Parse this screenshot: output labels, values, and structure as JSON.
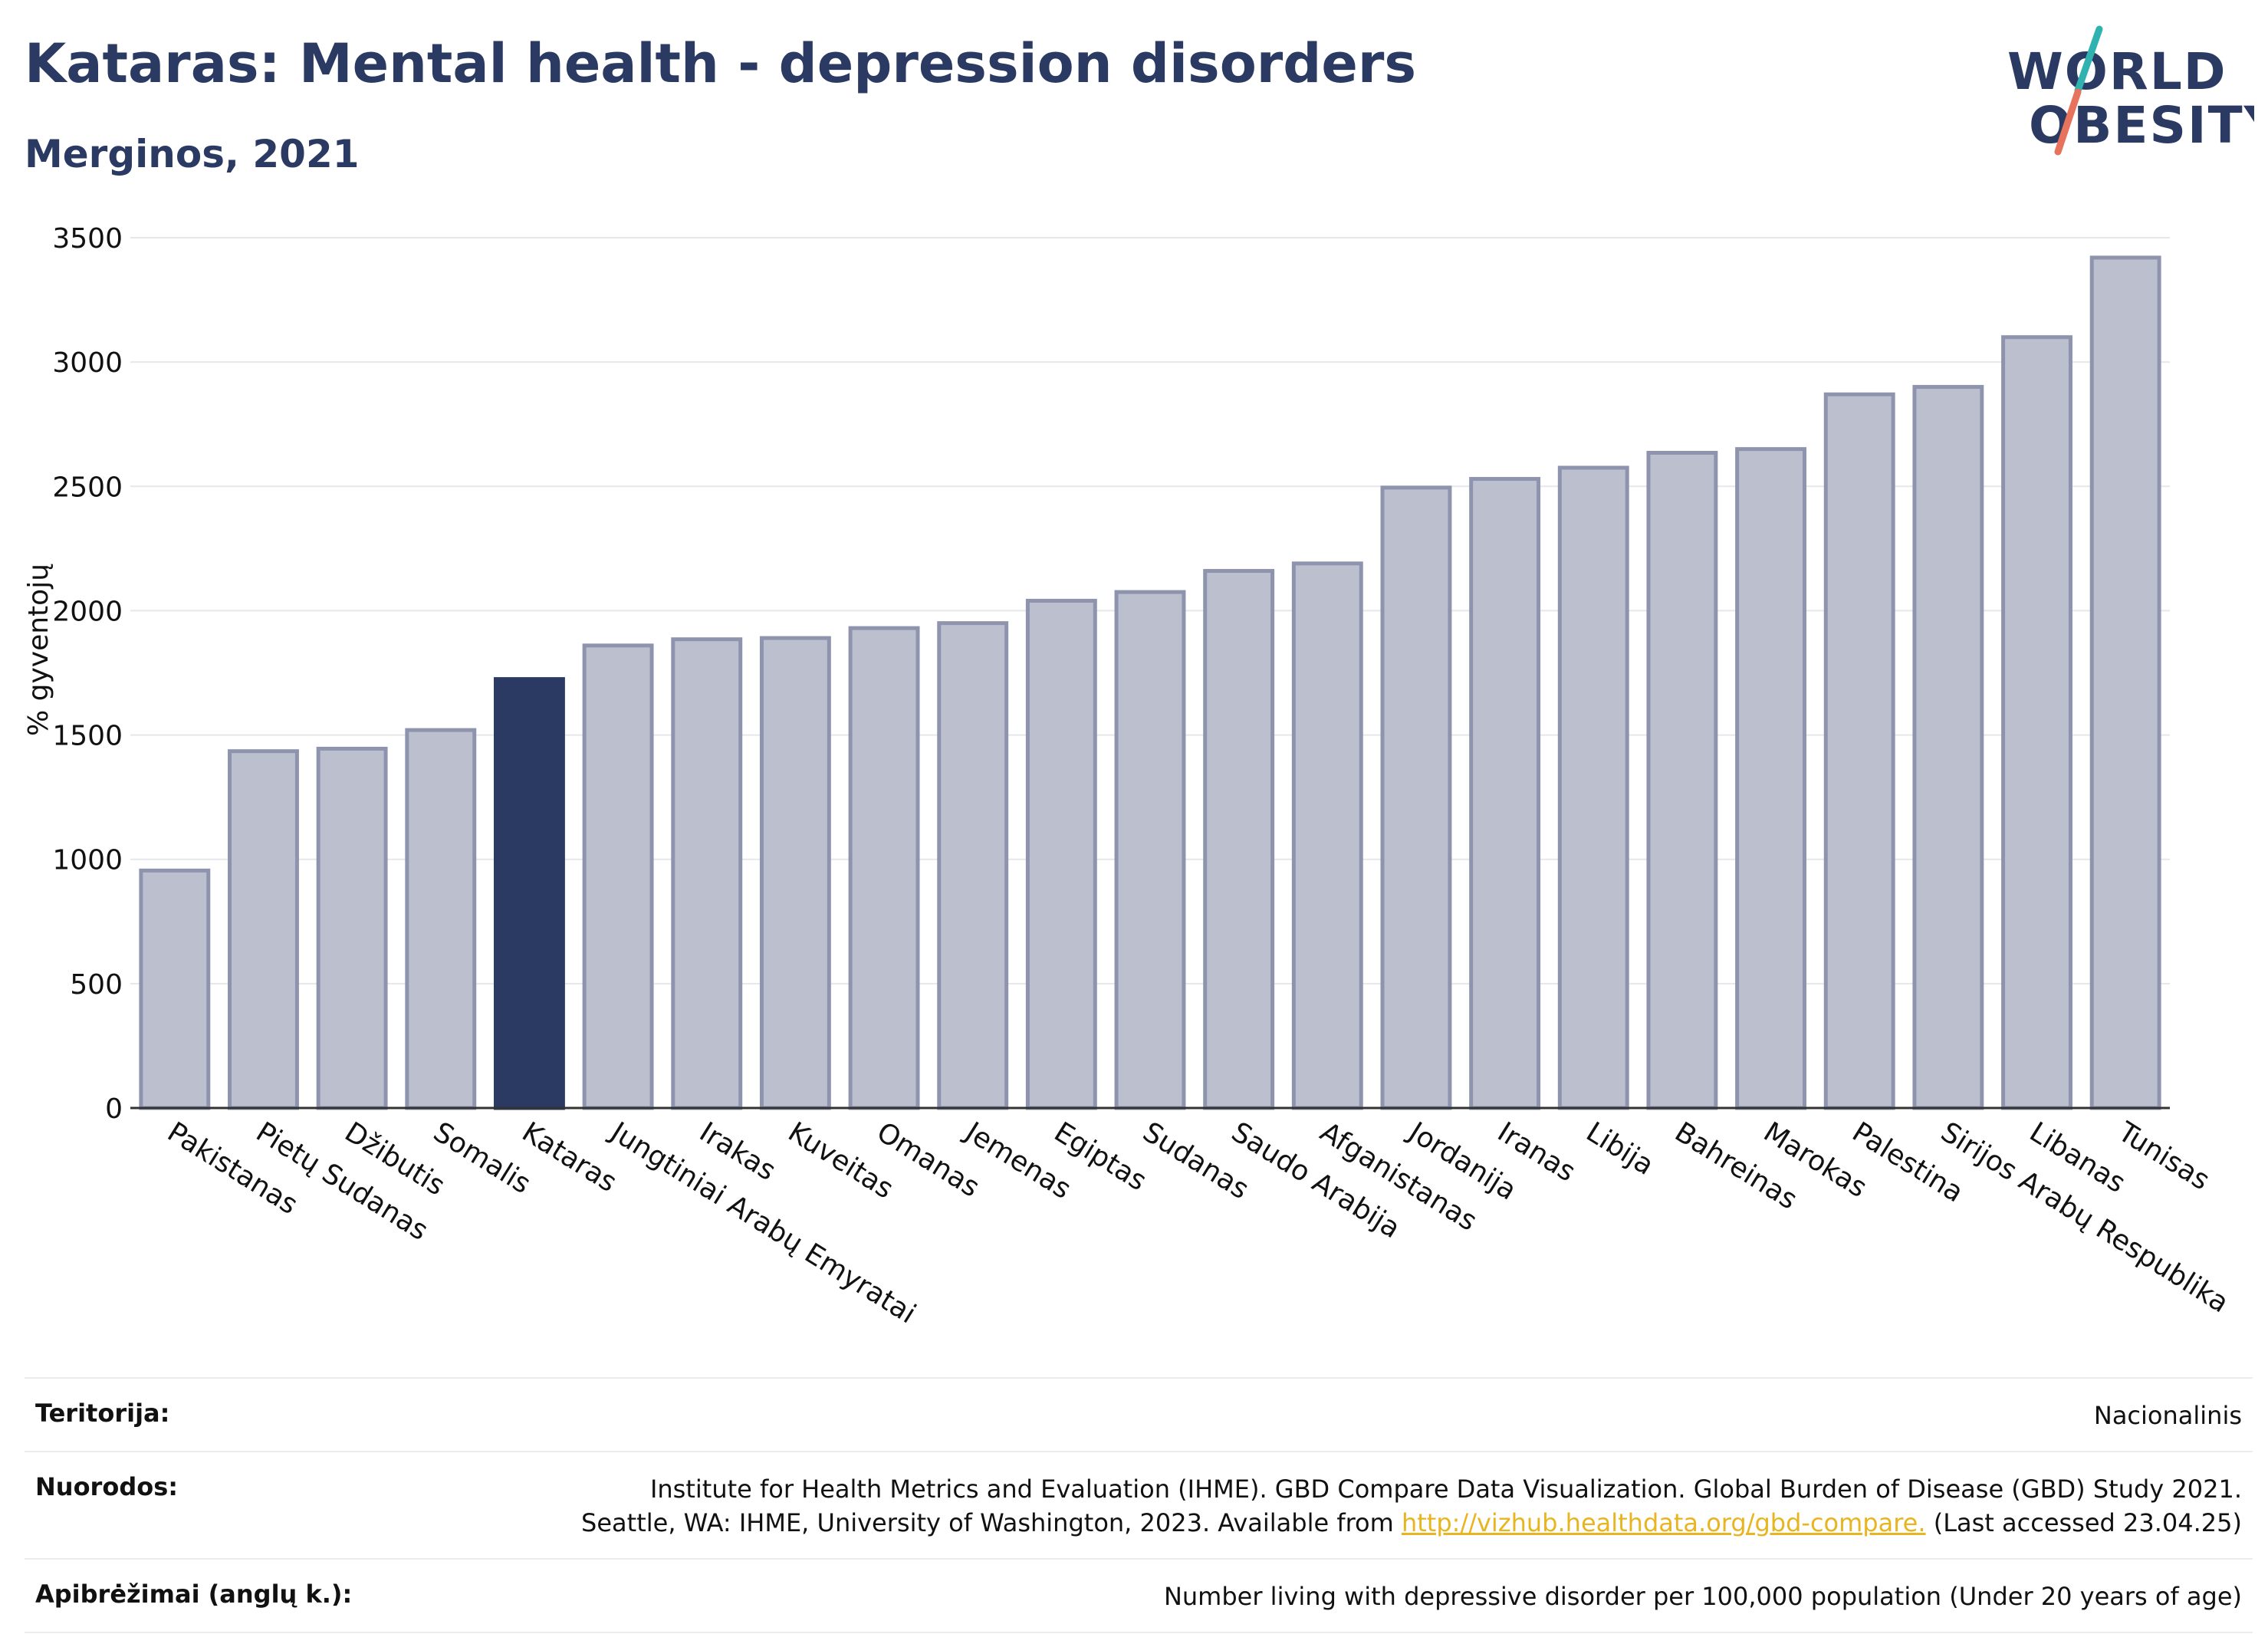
{
  "header": {
    "title": "Kataras: Mental health - depression disorders",
    "subtitle": "Merginos, 2021"
  },
  "logo": {
    "line1": "WORLD",
    "line2": "OBESITY"
  },
  "colors": {
    "title": "#2b3a63",
    "bar": "#bcc0ce",
    "bar_stroke": "#8e94ad",
    "highlight": "#2b3a63",
    "grid": "#e5e7eb",
    "link": "#e8b520",
    "logo_teal": "#2fb2b0",
    "logo_coral": "#e8735c"
  },
  "chart_data": {
    "type": "bar",
    "title": "Kataras: Mental health - depression disorders",
    "subtitle": "Merginos, 2021",
    "ylabel": "% gyventojų",
    "ylim": [
      0,
      3500
    ],
    "yticks": [
      0,
      500,
      1000,
      1500,
      2000,
      2500,
      3000,
      3500
    ],
    "grid": true,
    "highlight": "Kataras",
    "categories": [
      "Pakistanas",
      "Pietų Sudanas",
      "Džibutis",
      "Somalis",
      "Kataras",
      "Jungtiniai Arabų Emyratai",
      "Irakas",
      "Kuveitas",
      "Omanas",
      "Jemenas",
      "Egiptas",
      "Sudanas",
      "Saudo Arabija",
      "Afganistanas",
      "Jordanija",
      "Iranas",
      "Libija",
      "Bahreinas",
      "Marokas",
      "Palestina",
      "Sirijos Arabų Respublika",
      "Libanas",
      "Tunisas"
    ],
    "values": [
      955,
      1435,
      1445,
      1520,
      1725,
      1860,
      1885,
      1890,
      1930,
      1950,
      2040,
      2075,
      2160,
      2190,
      2495,
      2530,
      2575,
      2635,
      2650,
      2870,
      2900,
      3100,
      3420
    ]
  },
  "footer": {
    "rows": [
      {
        "label": "Teritorija:",
        "lines": [
          "Nacionalinis"
        ]
      },
      {
        "label": "Nuorodos:",
        "lines": [
          "Institute for Health Metrics and Evaluation (IHME). GBD Compare Data Visualization. Global Burden of Disease (GBD) Study 2021.",
          "Seattle, WA: IHME, University of Washington, 2023. Available from "
        ],
        "link": "http://vizhub.healthdata.org/gbd-compare.",
        "after_link": " (Last accessed 23.04.25)"
      },
      {
        "label": "Apibrėžimai (anglų k.):",
        "lines": [
          "Number living with depressive disorder per 100,000 population (Under 20 years of age)"
        ]
      }
    ]
  }
}
